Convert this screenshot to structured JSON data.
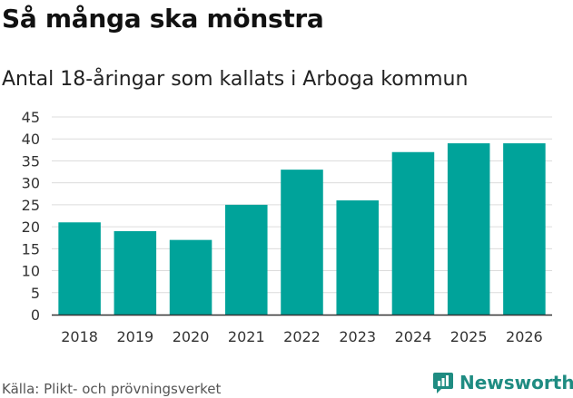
{
  "header": {
    "title": "Så många ska mönstra",
    "subtitle": "Antal 18-åringar som kallats i Arboga kommun"
  },
  "footer": {
    "source": "Källa: Plikt- och prövningsverket",
    "brand": "Newsworthy"
  },
  "colors": {
    "bar": "#00a39a",
    "grid": "#dcdcdc",
    "axis": "#333333",
    "tick_text": "#333333",
    "brand": "#1f8c82"
  },
  "chart_data": {
    "type": "bar",
    "title": "Så många ska mönstra",
    "subtitle": "Antal 18-åringar som kallats i Arboga kommun",
    "xlabel": "",
    "ylabel": "",
    "categories": [
      "2018",
      "2019",
      "2020",
      "2021",
      "2022",
      "2023",
      "2024",
      "2025",
      "2026"
    ],
    "values": [
      21,
      19,
      17,
      25,
      33,
      26,
      37,
      39,
      39
    ],
    "ylim": [
      0,
      45
    ],
    "yticks": [
      0,
      5,
      10,
      15,
      20,
      25,
      30,
      35,
      40,
      45
    ],
    "grid": true,
    "legend": "none"
  }
}
